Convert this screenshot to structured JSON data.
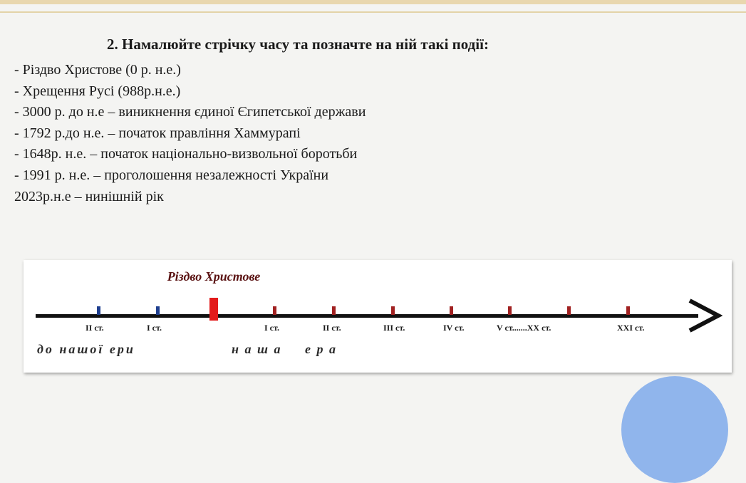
{
  "task": {
    "title": "2. Намалюйте стрічку часу та позначте на ній такі події:",
    "events": [
      "- Різдво Христове (0  р. н.е.)",
      "- Хрещення Русі (988р.н.е.)",
      "- 3000 р. до н.е – виникнення єдиної Єгипетської держави",
      "- 1792 р.до н.е. – початок правління Хаммурапі",
      "- 1648р. н.е. – початок національно-визвольної боротьби",
      "- 1991 р. н.е. – проголошення незалежності України",
      "2023р.н.е – нинішній рік"
    ]
  },
  "timeline": {
    "event_label": "Різдво Христове",
    "centuries_bc": [
      "ІІ ст.",
      "І ст."
    ],
    "centuries_ad": [
      "І ст.",
      "ІІ ст.",
      "ІІІ ст.",
      "ІV ст.",
      "V ст.......ХХ ст.",
      "ХХІ ст."
    ],
    "era_bc": "до нашої ери",
    "era_ad": "н а ш а     е р а",
    "colors": {
      "bc_tick": "#1f3f8f",
      "ad_tick": "#a12121",
      "christmas_marker": "#e31b1b"
    }
  }
}
